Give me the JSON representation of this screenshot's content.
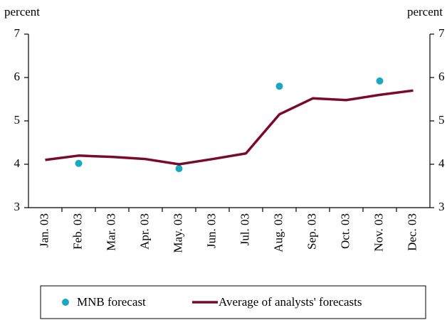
{
  "chart_data": {
    "type": "line",
    "y_label": "percent",
    "y2_label": "percent",
    "categories": [
      "Jan. 03",
      "Feb. 03",
      "Mar. 03",
      "Apr. 03",
      "May. 03",
      "Jun. 03",
      "Jul. 03",
      "Aug. 03",
      "Sep. 03",
      "Oct. 03",
      "Nov. 03",
      "Dec. 03"
    ],
    "series": [
      {
        "name": "MNB forecast",
        "type": "scatter",
        "color": "#1aa7c0",
        "values": [
          null,
          4.02,
          null,
          null,
          3.9,
          null,
          null,
          5.8,
          null,
          null,
          5.92,
          null
        ]
      },
      {
        "name": "Average of analysts' forecasts",
        "type": "line",
        "color": "#7b0a2a",
        "values": [
          4.1,
          4.2,
          4.17,
          4.12,
          4.0,
          4.12,
          4.25,
          5.15,
          5.52,
          5.48,
          5.6,
          5.7
        ]
      }
    ],
    "ylim": [
      3,
      7
    ],
    "yticks": [
      3,
      4,
      5,
      6,
      7
    ],
    "y2lim": [
      3,
      7
    ],
    "y2ticks": [
      3,
      4,
      5,
      6,
      7
    ]
  }
}
